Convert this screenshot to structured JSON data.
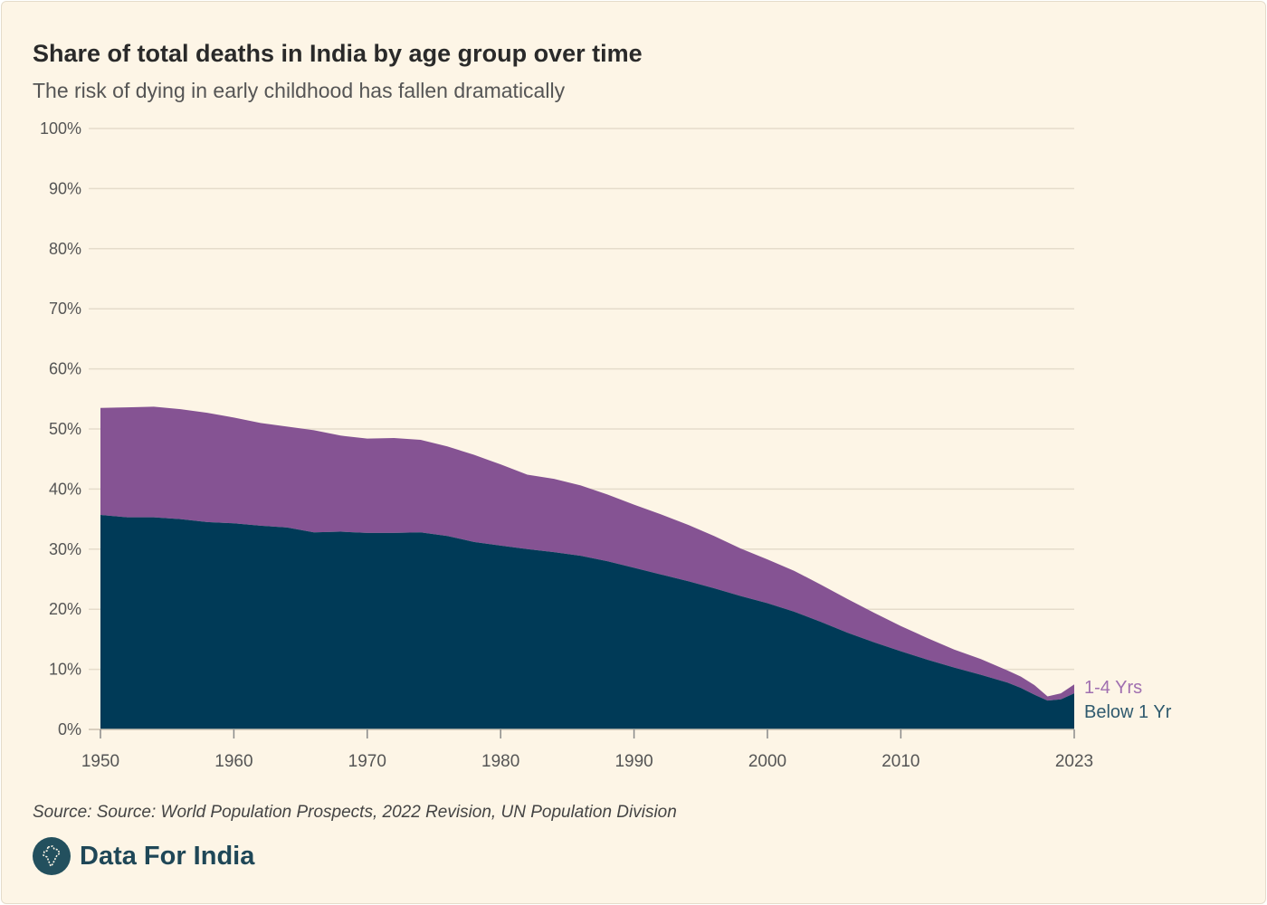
{
  "header": {
    "title": "Share of total deaths in India by age group over time",
    "subtitle": "The risk of dying in early childhood has fallen dramatically"
  },
  "footer": {
    "source": "Source: Source: World Population Prospects, 2022 Revision, UN Population Division",
    "brand": "Data For India"
  },
  "colors": {
    "background": "#fdf5e6",
    "below_1_yr": "#003a57",
    "one_to_four_yrs": "#855393",
    "below_1_yr_label": "#2f5a6e",
    "one_to_four_label": "#a06fb0",
    "gridline": "#e5dccb"
  },
  "icons": {
    "brand_logo": "india-map-icon"
  },
  "chart_data": {
    "type": "area",
    "stacked": true,
    "x_ticks": [
      "1950",
      "1960",
      "1970",
      "1980",
      "1990",
      "2000",
      "2010",
      "2023"
    ],
    "y_ticks": [
      "0%",
      "10%",
      "20%",
      "30%",
      "40%",
      "50%",
      "60%",
      "70%",
      "80%",
      "90%",
      "100%"
    ],
    "xlim": [
      1950,
      2023
    ],
    "ylim": [
      0,
      100
    ],
    "grid": "horizontal",
    "legend": "inline labels at right end",
    "series": [
      {
        "name": "Below 1 Yr",
        "x": [
          1950,
          1952,
          1954,
          1956,
          1958,
          1960,
          1962,
          1964,
          1966,
          1968,
          1970,
          1972,
          1974,
          1976,
          1978,
          1980,
          1982,
          1984,
          1986,
          1988,
          1990,
          1992,
          1994,
          1996,
          1998,
          2000,
          2002,
          2004,
          2006,
          2008,
          2010,
          2012,
          2014,
          2016,
          2018,
          2019,
          2020,
          2021,
          2022,
          2023
        ],
        "values": [
          35.7,
          35.3,
          35.3,
          35.0,
          34.5,
          34.3,
          33.9,
          33.6,
          32.8,
          32.9,
          32.7,
          32.7,
          32.8,
          32.2,
          31.2,
          30.6,
          30.0,
          29.5,
          28.9,
          28.0,
          26.9,
          25.8,
          24.7,
          23.5,
          22.2,
          21.0,
          19.6,
          17.9,
          16.1,
          14.5,
          13.0,
          11.6,
          10.3,
          9.1,
          7.8,
          6.9,
          5.8,
          4.8,
          5.0,
          6.0
        ]
      },
      {
        "name": "1-4 Yrs",
        "x": [
          1950,
          1952,
          1954,
          1956,
          1958,
          1960,
          1962,
          1964,
          1966,
          1968,
          1970,
          1972,
          1974,
          1976,
          1978,
          1980,
          1982,
          1984,
          1986,
          1988,
          1990,
          1992,
          1994,
          1996,
          1998,
          2000,
          2002,
          2004,
          2006,
          2008,
          2010,
          2012,
          2014,
          2016,
          2018,
          2019,
          2020,
          2021,
          2022,
          2023
        ],
        "values": [
          17.8,
          18.3,
          18.4,
          18.3,
          18.2,
          17.6,
          17.1,
          16.8,
          17.0,
          16.0,
          15.7,
          15.8,
          15.4,
          14.9,
          14.5,
          13.5,
          12.4,
          12.2,
          11.7,
          11.1,
          10.5,
          10.0,
          9.4,
          8.7,
          7.9,
          7.3,
          6.8,
          6.2,
          5.6,
          4.9,
          4.2,
          3.6,
          3.0,
          2.6,
          2.0,
          1.9,
          1.6,
          0.7,
          1.0,
          1.5
        ]
      }
    ]
  }
}
